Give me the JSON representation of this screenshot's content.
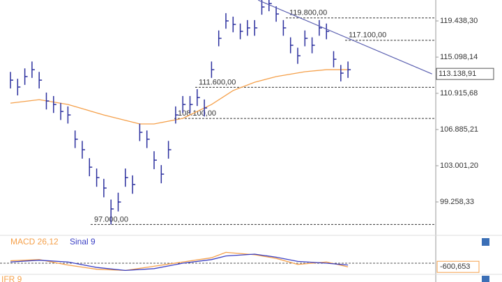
{
  "chart_data": {
    "type": "ohlc",
    "log_scale": true,
    "bar_color": "#2b2f9e",
    "high": [
      113370,
      112580,
      113780,
      114580,
      113370,
      111000,
      110610,
      109830,
      109440,
      106780,
      105650,
      103800,
      102710,
      101630,
      99500,
      100200,
      102710,
      101990,
      107530,
      106780,
      104540,
      103070,
      105650,
      109440,
      110610,
      110610,
      111390,
      110220,
      114580,
      118280,
      120390,
      119960,
      119120,
      119540,
      119540,
      122100,
      122530,
      121240,
      119540,
      117450,
      116210,
      118280,
      117450,
      119540,
      119120,
      115800,
      114180,
      114580
    ],
    "low": [
      111470,
      110680,
      111880,
      112680,
      111470,
      109100,
      108710,
      107930,
      107540,
      104880,
      103750,
      101900,
      100810,
      99730,
      97000,
      98300,
      100810,
      100090,
      105630,
      104880,
      102640,
      101170,
      103750,
      107540,
      108710,
      108710,
      109490,
      108320,
      112680,
      116380,
      118490,
      118060,
      117220,
      117640,
      117640,
      120200,
      120630,
      119340,
      117640,
      115550,
      114310,
      116380,
      115550,
      117640,
      117220,
      113900,
      112280,
      112680
    ],
    "close": [
      112420,
      111630,
      112830,
      113630,
      112420,
      110050,
      109660,
      108880,
      108490,
      105830,
      104700,
      102850,
      101760,
      100680,
      98550,
      99250,
      101760,
      101040,
      106580,
      105830,
      103590,
      102120,
      104700,
      108490,
      109660,
      109660,
      110440,
      109270,
      113630,
      117330,
      119440,
      119010,
      118170,
      118590,
      118590,
      121150,
      121580,
      120290,
      118590,
      116500,
      115260,
      117330,
      116500,
      118590,
      118170,
      114850,
      113230,
      113630
    ],
    "ma": {
      "color": "#f5a04a",
      "x": [
        0,
        4,
        8,
        13,
        18,
        20,
        24,
        28,
        31,
        34,
        37,
        41,
        44,
        47
      ],
      "values": [
        109810,
        110200,
        109660,
        108490,
        107500,
        107500,
        108110,
        109660,
        111230,
        112180,
        112830,
        113390,
        113630,
        113630
      ]
    },
    "trendline": {
      "color": "#5a5fb0",
      "x": [
        34.5,
        58.7
      ],
      "values": [
        122000,
        113138.91
      ]
    },
    "levels": [
      {
        "value": 119800,
        "label": "119.800,00"
      },
      {
        "value": 117100,
        "label": "117.100,00"
      },
      {
        "value": 111600,
        "label": "111.600,00"
      },
      {
        "value": 108100,
        "label": "108.100,00"
      },
      {
        "value": 97000,
        "label": "97.000,00"
      }
    ],
    "last_price": {
      "value": 113138.91,
      "label": "113.138,91"
    },
    "ylim": [
      96130,
      122020
    ],
    "yticks": [
      {
        "value": 119438.3,
        "label": "119.438,30"
      },
      {
        "value": 115098.14,
        "label": "115.098,14"
      },
      {
        "value": 110915.68,
        "label": "110.915,68"
      },
      {
        "value": 106885.21,
        "label": "106.885,21"
      },
      {
        "value": 103001.2,
        "label": "103.001,20"
      },
      {
        "value": 99258.33,
        "label": "99.258,33"
      }
    ],
    "macd": {
      "ylim": [
        -3000,
        3000
      ],
      "x": [
        0,
        4,
        8,
        12,
        16,
        20,
        24,
        28,
        30,
        34,
        37,
        40,
        44,
        47
      ],
      "series": [
        {
          "name": "MACD 26,12",
          "color": "#f5a04a",
          "values": [
            400,
            600,
            -300,
            -1000,
            -1200,
            -500,
            200,
            900,
            1800,
            1400,
            800,
            -200,
            200,
            -600.653
          ]
        },
        {
          "name": "Sinal 9",
          "color": "#3a3fc4",
          "values": [
            200,
            500,
            200,
            -700,
            -1200,
            -900,
            0,
            600,
            1200,
            1500,
            1000,
            300,
            0,
            -300
          ]
        }
      ],
      "last": {
        "value": -600.653,
        "label": "-600,653"
      }
    },
    "ifr_label": "IFR 9"
  }
}
